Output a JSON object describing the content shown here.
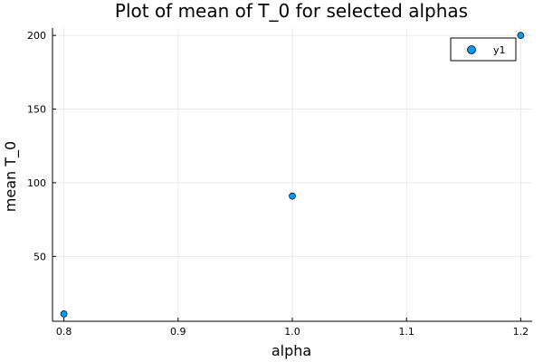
{
  "chart_data": {
    "type": "scatter",
    "title": "Plot of mean of T_0 for selected alphas",
    "xlabel": "alpha",
    "ylabel": "mean T_0",
    "xlim": [
      0.79,
      1.21
    ],
    "ylim": [
      6,
      205
    ],
    "xticks": [
      0.8,
      0.9,
      1.0,
      1.1,
      1.2
    ],
    "xtick_labels": [
      "0.8",
      "0.9",
      "1.0",
      "1.1",
      "1.2"
    ],
    "yticks": [
      50,
      100,
      150,
      200
    ],
    "ytick_labels": [
      "50",
      "100",
      "150",
      "200"
    ],
    "grid": true,
    "legend_position": "top-right",
    "series": [
      {
        "name": "y1",
        "color": "#009AFA",
        "x": [
          0.8,
          1.0,
          1.2
        ],
        "y": [
          11,
          91,
          200
        ]
      }
    ]
  }
}
